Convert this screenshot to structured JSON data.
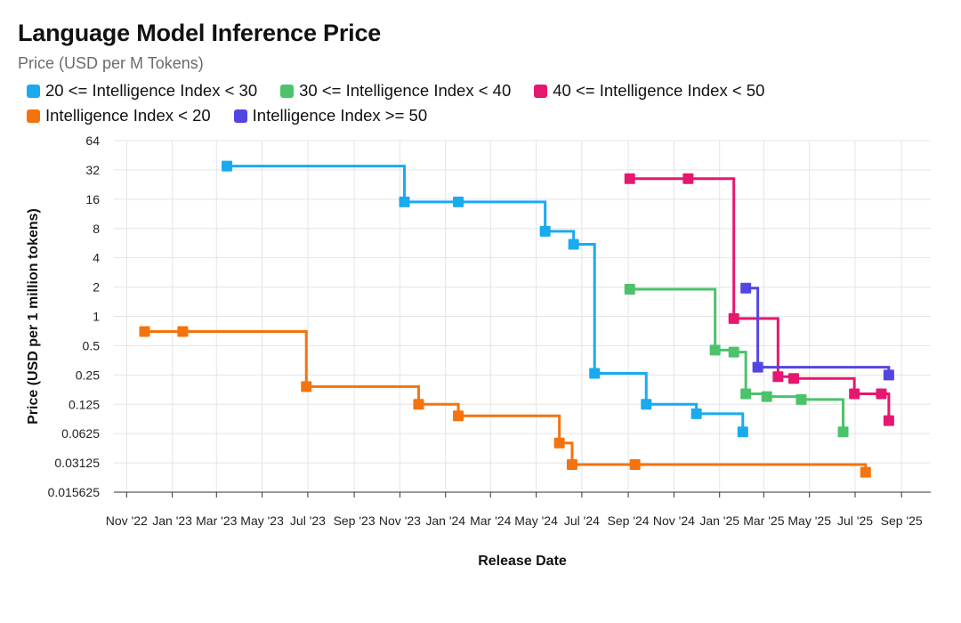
{
  "header": {
    "title": "Language Model Inference Price",
    "subtitle": "Price (USD per M Tokens)"
  },
  "chart_data": {
    "type": "line",
    "step": true,
    "log_scale_y": true,
    "xlabel": "Release Date",
    "ylabel": "Price (USD per 1 million tokens)",
    "ylim": [
      0.015625,
      64
    ],
    "xlim": [
      "2022-10-15",
      "2025-10-10"
    ],
    "y_ticks": [
      {
        "v": 64,
        "label": "64"
      },
      {
        "v": 32,
        "label": "32"
      },
      {
        "v": 16,
        "label": "16"
      },
      {
        "v": 8,
        "label": "8"
      },
      {
        "v": 4,
        "label": "4"
      },
      {
        "v": 2,
        "label": "2"
      },
      {
        "v": 1,
        "label": "1"
      },
      {
        "v": 0.5,
        "label": "0.5"
      },
      {
        "v": 0.25,
        "label": "0.25"
      },
      {
        "v": 0.125,
        "label": "0.125"
      },
      {
        "v": 0.0625,
        "label": "0.0625"
      },
      {
        "v": 0.03125,
        "label": "0.03125"
      },
      {
        "v": 0.015625,
        "label": "0.015625"
      }
    ],
    "x_ticks": [
      {
        "date": "2022-11-01",
        "label": "Nov '22"
      },
      {
        "date": "2023-01-01",
        "label": "Jan '23"
      },
      {
        "date": "2023-03-01",
        "label": "Mar '23"
      },
      {
        "date": "2023-05-01",
        "label": "May '23"
      },
      {
        "date": "2023-07-01",
        "label": "Jul '23"
      },
      {
        "date": "2023-09-01",
        "label": "Sep '23"
      },
      {
        "date": "2023-11-01",
        "label": "Nov '23"
      },
      {
        "date": "2024-01-01",
        "label": "Jan '24"
      },
      {
        "date": "2024-03-01",
        "label": "Mar '24"
      },
      {
        "date": "2024-05-01",
        "label": "May '24"
      },
      {
        "date": "2024-07-01",
        "label": "Jul '24"
      },
      {
        "date": "2024-09-01",
        "label": "Sep '24"
      },
      {
        "date": "2024-11-01",
        "label": "Nov '24"
      },
      {
        "date": "2025-01-01",
        "label": "Jan '25"
      },
      {
        "date": "2025-03-01",
        "label": "Mar '25"
      },
      {
        "date": "2025-05-01",
        "label": "May '25"
      },
      {
        "date": "2025-07-01",
        "label": "Jul '25"
      },
      {
        "date": "2025-09-01",
        "label": "Sep '25"
      }
    ],
    "grid": true,
    "legend_position": "top-left",
    "series": [
      {
        "name": "20 <= Intelligence Index < 30",
        "color": "#1aaaf0",
        "points": [
          [
            "2023-03-15",
            35
          ],
          [
            "2023-11-07",
            15
          ],
          [
            "2024-01-18",
            15
          ],
          [
            "2024-05-13",
            7.5
          ],
          [
            "2024-06-20",
            5.5
          ],
          [
            "2024-07-18",
            0.26
          ],
          [
            "2024-09-25",
            0.125
          ],
          [
            "2024-12-01",
            0.1
          ],
          [
            "2025-02-01",
            0.065
          ]
        ],
        "extend_to": null
      },
      {
        "name": "30 <= Intelligence Index < 40",
        "color": "#4cc26a",
        "points": [
          [
            "2024-09-03",
            1.9
          ],
          [
            "2024-12-26",
            0.45
          ],
          [
            "2025-01-20",
            0.43
          ],
          [
            "2025-02-05",
            0.16
          ],
          [
            "2025-03-05",
            0.15
          ],
          [
            "2025-04-20",
            0.14
          ],
          [
            "2025-06-15",
            0.065
          ]
        ],
        "extend_to": null
      },
      {
        "name": "40 <= Intelligence Index < 50",
        "color": "#e5176f",
        "points": [
          [
            "2024-09-03",
            26
          ],
          [
            "2024-11-20",
            26
          ],
          [
            "2025-01-20",
            0.95
          ],
          [
            "2025-03-20",
            0.24
          ],
          [
            "2025-04-10",
            0.23
          ],
          [
            "2025-06-30",
            0.16
          ],
          [
            "2025-08-05",
            0.16
          ],
          [
            "2025-08-15",
            0.085
          ]
        ],
        "extend_to": null
      },
      {
        "name": "Intelligence Index < 20",
        "color": "#f5730d",
        "points": [
          [
            "2022-11-25",
            0.7
          ],
          [
            "2023-01-15",
            0.7
          ],
          [
            "2023-06-29",
            0.19
          ],
          [
            "2023-11-26",
            0.125
          ],
          [
            "2024-01-18",
            0.095
          ],
          [
            "2024-06-01",
            0.05
          ],
          [
            "2024-06-18",
            0.03
          ],
          [
            "2024-09-10",
            0.03
          ],
          [
            "2025-07-15",
            0.025
          ]
        ],
        "extend_to": null
      },
      {
        "name": "Intelligence Index >= 50",
        "color": "#5346e0",
        "points": [
          [
            "2025-02-05",
            1.95
          ],
          [
            "2025-02-21",
            0.3
          ],
          [
            "2025-08-15",
            0.25
          ]
        ],
        "extend_to": null
      }
    ]
  }
}
